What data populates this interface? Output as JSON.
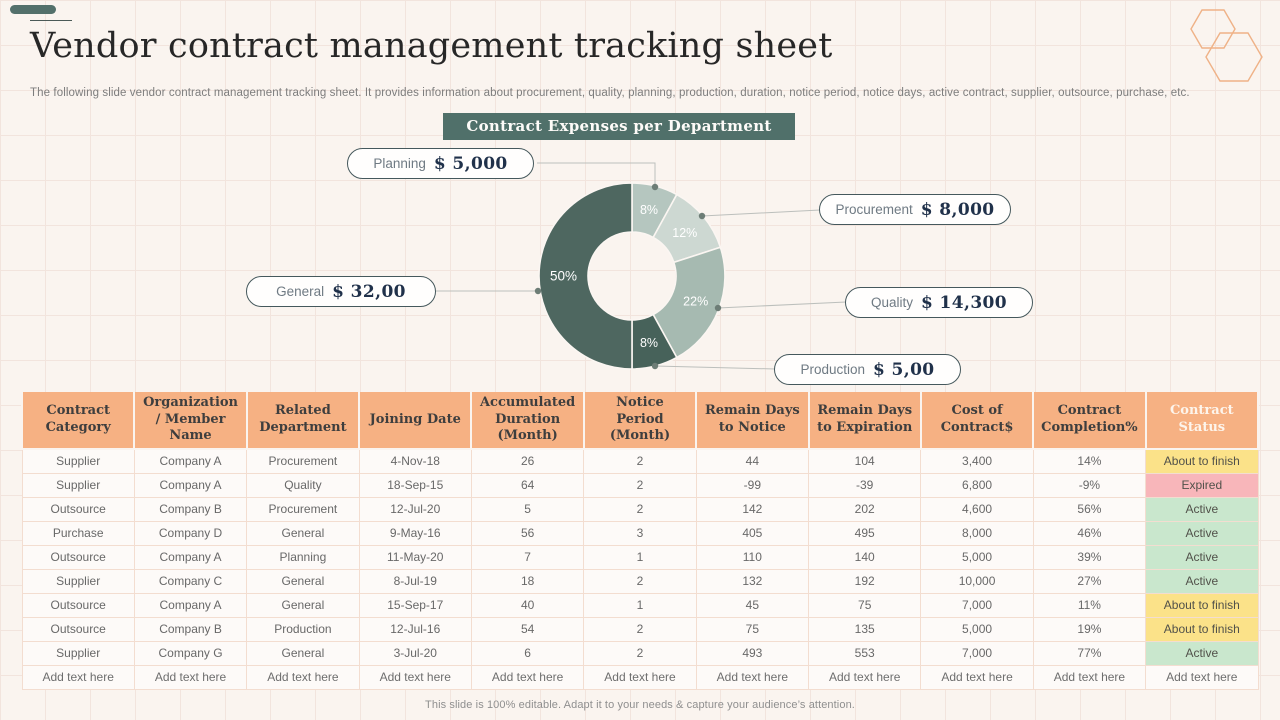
{
  "slide": {
    "title": "Vendor contract management tracking sheet",
    "subtitle": "The following slide vendor contract management tracking sheet. It provides information about procurement, quality, planning, production, duration, notice period, notice days, active  contract, supplier, outsource, purchase, etc.",
    "footer": "This slide is 100% editable. Adapt it to your needs & capture your audience’s attention."
  },
  "chart_data": {
    "type": "pie",
    "variant": "donut",
    "title": "Contract Expenses per Department",
    "legend_position": "callout-labels",
    "segments": [
      {
        "label": "Planning",
        "amount": "$ 5,000",
        "pct": 8,
        "pct_label": "8%",
        "color": "#b5c6bf"
      },
      {
        "label": "Procurement",
        "amount": "$ 8,000",
        "pct": 12,
        "pct_label": "12%",
        "color": "#cdd8d2"
      },
      {
        "label": "Quality",
        "amount": "$ 14,300",
        "pct": 22,
        "pct_label": "22%",
        "color": "#a6bab1"
      },
      {
        "label": "Production",
        "amount": "$ 5,00",
        "pct": 8,
        "pct_label": "8%",
        "color": "#47625a"
      },
      {
        "label": "General",
        "amount": "$ 32,00",
        "pct": 50,
        "pct_label": "50%",
        "color": "#4e6760"
      }
    ]
  },
  "table": {
    "columns": [
      "Contract Category",
      "Organization / Member Name",
      "Related Department",
      "Joining Date",
      "Accumulated Duration (Month)",
      "Notice Period (Month)",
      "Remain Days to Notice",
      "Remain Days to Expiration",
      "Cost of Contract$",
      "Contract Completion%",
      "Contract Status"
    ],
    "rows": [
      [
        "Supplier",
        "Company A",
        "Procurement",
        "4-Nov-18",
        "26",
        "2",
        "44",
        "104",
        "3,400",
        "14%",
        "About to finish"
      ],
      [
        "Supplier",
        "Company A",
        "Quality",
        "18-Sep-15",
        "64",
        "2",
        "-99",
        "-39",
        "6,800",
        "-9%",
        "Expired"
      ],
      [
        "Outsource",
        "Company B",
        "Procurement",
        "12-Jul-20",
        "5",
        "2",
        "142",
        "202",
        "4,600",
        "56%",
        "Active"
      ],
      [
        "Purchase",
        "Company D",
        "General",
        "9-May-16",
        "56",
        "3",
        "405",
        "495",
        "8,000",
        "46%",
        "Active"
      ],
      [
        "Outsource",
        "Company A",
        "Planning",
        "11-May-20",
        "7",
        "1",
        "110",
        "140",
        "5,000",
        "39%",
        "Active"
      ],
      [
        "Supplier",
        "Company C",
        "General",
        "8-Jul-19",
        "18",
        "2",
        "132",
        "192",
        "10,000",
        "27%",
        "Active"
      ],
      [
        "Outsource",
        "Company A",
        "General",
        "15-Sep-17",
        "40",
        "1",
        "45",
        "75",
        "7,000",
        "11%",
        "About to finish"
      ],
      [
        "Outsource",
        "Company B",
        "Production",
        "12-Jul-16",
        "54",
        "2",
        "75",
        "135",
        "5,000",
        "19%",
        "About to finish"
      ],
      [
        "Supplier",
        "Company G",
        "General",
        "3-Jul-20",
        "6",
        "2",
        "493",
        "553",
        "7,000",
        "77%",
        "Active"
      ]
    ],
    "add_row": [
      "Add text here",
      "Add text here",
      "Add text here",
      "Add text here",
      "Add text here",
      "Add text here",
      "Add text here",
      "Add text here",
      "Add text here",
      "Add text here",
      "Add text here"
    ],
    "status_colors": {
      "About to finish": "#fbe289",
      "Expired": "#f8b6ba",
      "Active": "#c9e7cd"
    },
    "header_bg": "#f6b183"
  },
  "theme": {
    "chart_header_bg": "#50706a",
    "accent_bar": "#53706b",
    "hexagon_stroke": "#efb287",
    "background": "#faf4ef"
  }
}
